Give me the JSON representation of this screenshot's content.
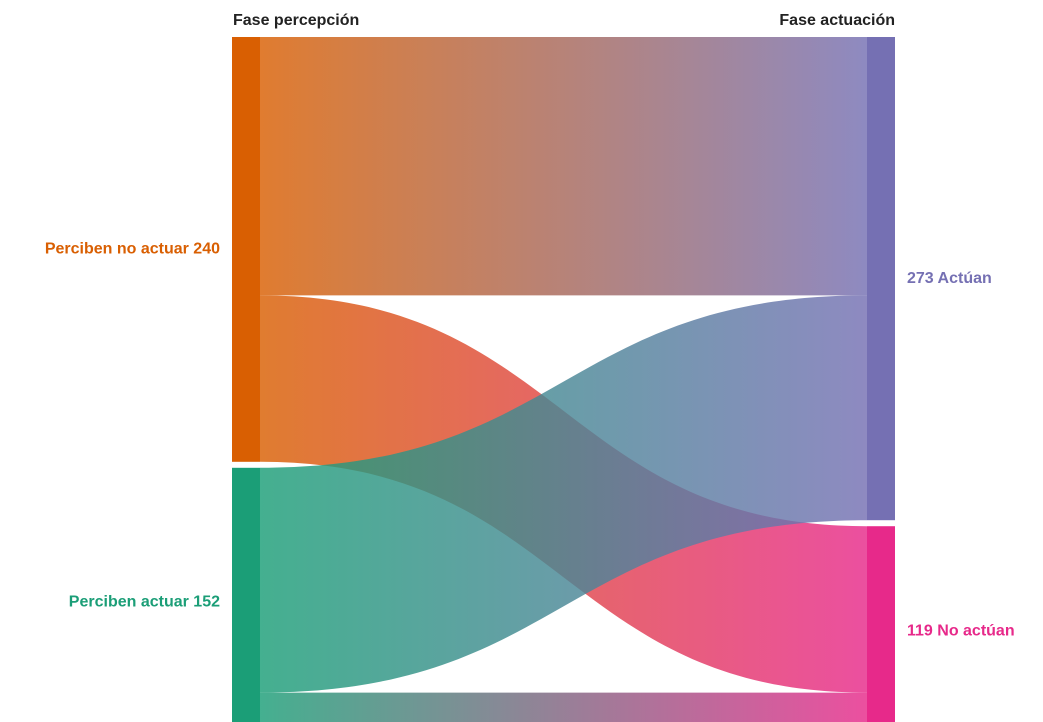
{
  "chart_data": {
    "type": "sankey",
    "stages": [
      "Fase percepción",
      "Fase actuación"
    ],
    "nodes": [
      {
        "id": "no_act",
        "stage": 0,
        "value": 240,
        "label": "Perciben no actuar 240",
        "color": "#d95f02"
      },
      {
        "id": "act",
        "stage": 0,
        "value": 152,
        "label": "Perciben actuar 152",
        "color": "#1b9e77"
      },
      {
        "id": "actuan",
        "stage": 1,
        "value": 273,
        "label": "273 Actúan",
        "color": "#7570b3"
      },
      {
        "id": "no_actuan",
        "stage": 1,
        "value": 119,
        "label": "119 No actúan",
        "color": "#e7298a"
      }
    ],
    "links": [
      {
        "source": "no_act",
        "target": "actuan",
        "value": 146
      },
      {
        "source": "no_act",
        "target": "no_actuan",
        "value": 94
      },
      {
        "source": "act",
        "target": "actuan",
        "value": 127
      },
      {
        "source": "act",
        "target": "no_actuan",
        "value": 25
      }
    ]
  }
}
